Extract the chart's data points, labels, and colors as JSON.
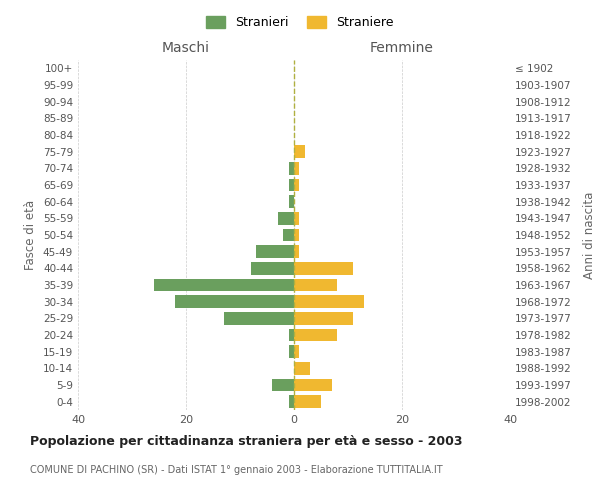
{
  "age_groups": [
    "0-4",
    "5-9",
    "10-14",
    "15-19",
    "20-24",
    "25-29",
    "30-34",
    "35-39",
    "40-44",
    "45-49",
    "50-54",
    "55-59",
    "60-64",
    "65-69",
    "70-74",
    "75-79",
    "80-84",
    "85-89",
    "90-94",
    "95-99",
    "100+"
  ],
  "birth_years": [
    "1998-2002",
    "1993-1997",
    "1988-1992",
    "1983-1987",
    "1978-1982",
    "1973-1977",
    "1968-1972",
    "1963-1967",
    "1958-1962",
    "1953-1957",
    "1948-1952",
    "1943-1947",
    "1938-1942",
    "1933-1937",
    "1928-1932",
    "1923-1927",
    "1918-1922",
    "1913-1917",
    "1908-1912",
    "1903-1907",
    "≤ 1902"
  ],
  "maschi": [
    1,
    4,
    0,
    1,
    1,
    13,
    22,
    26,
    8,
    7,
    2,
    3,
    1,
    1,
    1,
    0,
    0,
    0,
    0,
    0,
    0
  ],
  "femmine": [
    5,
    7,
    3,
    1,
    8,
    11,
    13,
    8,
    11,
    1,
    1,
    1,
    0,
    1,
    1,
    2,
    0,
    0,
    0,
    0,
    0
  ],
  "color_maschi": "#6a9f5e",
  "color_femmine": "#f0b830",
  "color_dashed": "#b0b040",
  "title": "Popolazione per cittadinanza straniera per età e sesso - 2003",
  "subtitle": "COMUNE DI PACHINO (SR) - Dati ISTAT 1° gennaio 2003 - Elaborazione TUTTITALIA.IT",
  "xlabel_left": "Maschi",
  "xlabel_right": "Femmine",
  "ylabel_left": "Fasce di età",
  "ylabel_right": "Anni di nascita",
  "legend_stranieri": "Stranieri",
  "legend_straniere": "Straniere",
  "xlim": 40,
  "background_color": "#ffffff",
  "grid_color": "#cccccc"
}
